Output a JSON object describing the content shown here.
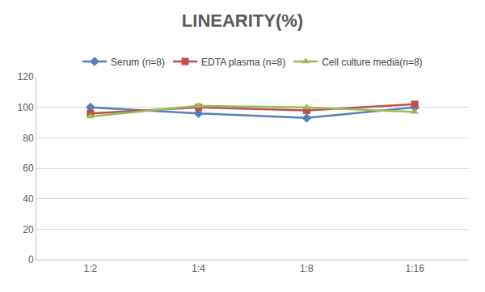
{
  "chart_data": {
    "type": "line",
    "title": "LINEARITY(%)",
    "categories": [
      "1:2",
      "1:4",
      "1:8",
      "1:16"
    ],
    "series": [
      {
        "name": "Serum (n=8)",
        "color": "#4f81bd",
        "marker": "diamond",
        "line_style": "solid",
        "values": [
          100,
          96,
          93,
          100
        ]
      },
      {
        "name": "EDTA plasma (n=8)",
        "color": "#c0504d",
        "marker": "square",
        "line_style": "solid",
        "values": [
          96,
          100,
          98,
          102
        ]
      },
      {
        "name": "Cell culture media(n=8)",
        "color": "#9bbb59",
        "marker": "triangle-up",
        "line_style": "solid",
        "values": [
          94,
          101,
          100,
          97
        ]
      }
    ],
    "ylim": [
      0,
      120
    ],
    "yticks": [
      0,
      20,
      40,
      60,
      80,
      100,
      120
    ],
    "grid": true,
    "legend": "top"
  }
}
